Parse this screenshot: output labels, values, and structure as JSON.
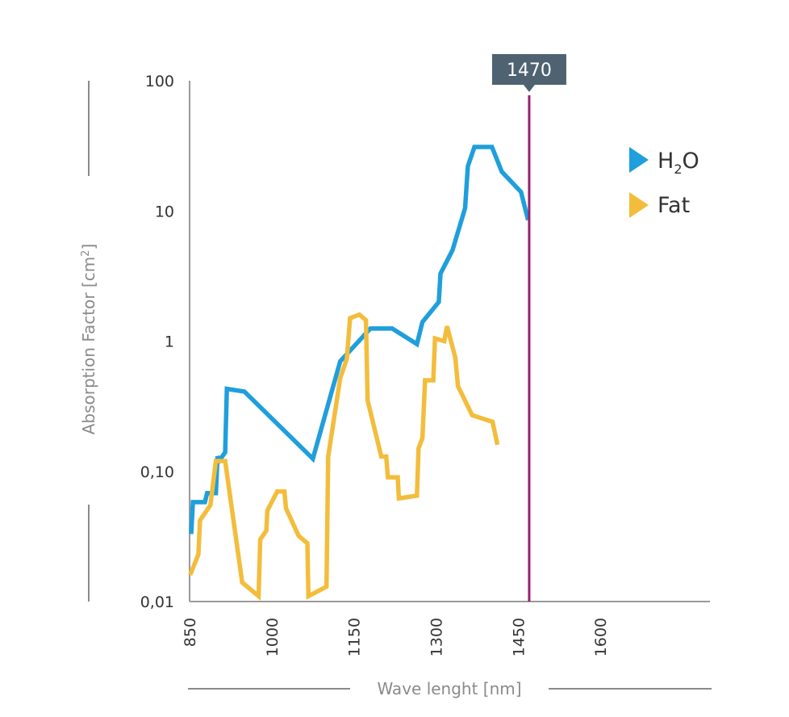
{
  "chart_data": {
    "type": "line",
    "xlabel": "Wave lenght [nm]",
    "ylabel": "Absorption Factor [cm²]",
    "ylabel_main": "Absorption Factor [cm",
    "ylabel_sup": "2",
    "ylabel_end": "]",
    "ylim": [
      0.01,
      100
    ],
    "yscale": "log",
    "xlim": [
      850,
      1800
    ],
    "x_ticks": [
      "850",
      "1000",
      "1150",
      "1300",
      "1450",
      "1600"
    ],
    "y_ticks": [
      "100",
      "10",
      "1",
      "0,10",
      "0,01"
    ],
    "grid": false,
    "legend_position": "top-right",
    "marker": {
      "x": 1470,
      "label": "1470",
      "color": "#9b1f6e"
    },
    "series": [
      {
        "name": "H₂O",
        "name_main": "H",
        "name_sub": "2",
        "name_end": "O",
        "color": "#1f9fdb",
        "points": [
          [
            853,
            0.033
          ],
          [
            856,
            0.058
          ],
          [
            878,
            0.058
          ],
          [
            882,
            0.068
          ],
          [
            898,
            0.068
          ],
          [
            901,
            0.13
          ],
          [
            905,
            0.122
          ],
          [
            915,
            0.14
          ],
          [
            918,
            0.43
          ],
          [
            950,
            0.41
          ],
          [
            1075,
            0.125
          ],
          [
            1125,
            0.7
          ],
          [
            1180,
            1.25
          ],
          [
            1220,
            1.25
          ],
          [
            1265,
            0.95
          ],
          [
            1275,
            1.4
          ],
          [
            1305,
            2.0
          ],
          [
            1308,
            3.3
          ],
          [
            1330,
            5.0
          ],
          [
            1353,
            10.5
          ],
          [
            1358,
            22
          ],
          [
            1370,
            31
          ],
          [
            1402,
            31
          ],
          [
            1420,
            20
          ],
          [
            1455,
            14
          ],
          [
            1468,
            8.5
          ]
        ]
      },
      {
        "name": "Fat",
        "color": "#f3bd3c",
        "points": [
          [
            851,
            0.016
          ],
          [
            866,
            0.023
          ],
          [
            869,
            0.042
          ],
          [
            888,
            0.055
          ],
          [
            898,
            0.12
          ],
          [
            915,
            0.12
          ],
          [
            946,
            0.014
          ],
          [
            976,
            0.011
          ],
          [
            979,
            0.03
          ],
          [
            990,
            0.035
          ],
          [
            992,
            0.05
          ],
          [
            1010,
            0.07
          ],
          [
            1023,
            0.07
          ],
          [
            1026,
            0.052
          ],
          [
            1049,
            0.032
          ],
          [
            1065,
            0.028
          ],
          [
            1067,
            0.011
          ],
          [
            1100,
            0.013
          ],
          [
            1103,
            0.13
          ],
          [
            1125,
            0.52
          ],
          [
            1137,
            0.73
          ],
          [
            1143,
            1.5
          ],
          [
            1160,
            1.6
          ],
          [
            1172,
            1.45
          ],
          [
            1175,
            0.35
          ],
          [
            1200,
            0.13
          ],
          [
            1209,
            0.13
          ],
          [
            1212,
            0.09
          ],
          [
            1230,
            0.09
          ],
          [
            1232,
            0.062
          ],
          [
            1265,
            0.065
          ],
          [
            1268,
            0.15
          ],
          [
            1275,
            0.18
          ],
          [
            1280,
            0.5
          ],
          [
            1295,
            0.5
          ],
          [
            1298,
            1.05
          ],
          [
            1315,
            1.0
          ],
          [
            1320,
            1.3
          ],
          [
            1335,
            0.75
          ],
          [
            1340,
            0.45
          ],
          [
            1366,
            0.27
          ],
          [
            1403,
            0.24
          ],
          [
            1412,
            0.16
          ]
        ]
      }
    ]
  }
}
